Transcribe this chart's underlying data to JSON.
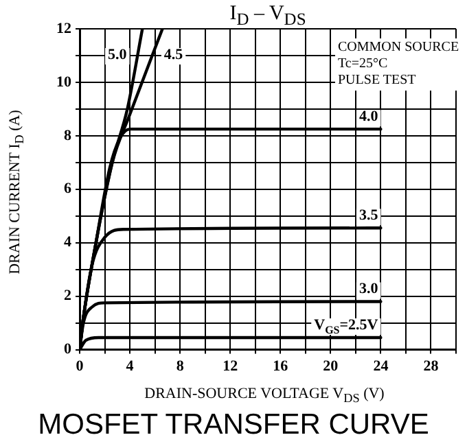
{
  "chart_data": {
    "type": "line",
    "title": "I$_{D}$ – V$_{DS}$",
    "xlabel": "DRAIN-SOURCE VOLTAGE  V$_{DS}$  (V)",
    "ylabel": "DRAIN CURRENT  I$_{D}$  (A)",
    "annotations": [
      "COMMON SOURCE",
      "Tc=25°C",
      "PULSE TEST",
      "MOSFET TRANSFER CURVE"
    ],
    "xlim": [
      0,
      30
    ],
    "ylim": [
      0,
      12
    ],
    "xticks": [
      0,
      {
        "value": 2,
        "label": null
      },
      4,
      {
        "value": 6,
        "label": null
      },
      8,
      {
        "value": 10,
        "label": null
      },
      12,
      {
        "value": 14,
        "label": null
      },
      16,
      {
        "value": 18,
        "label": null
      },
      20,
      {
        "value": 22,
        "label": null
      },
      24,
      {
        "value": 26,
        "label": null
      },
      28,
      {
        "value": 30,
        "label": null
      }
    ],
    "yticks": [
      0,
      {
        "value": 1,
        "label": null
      },
      2,
      {
        "value": 3,
        "label": null
      },
      4,
      {
        "value": 5,
        "label": null
      },
      6,
      {
        "value": 7,
        "label": null
      },
      8,
      {
        "value": 9,
        "label": null
      },
      10,
      {
        "value": 11,
        "label": null
      },
      12
    ],
    "grid": true,
    "legend": false,
    "series": [
      {
        "name": "5.0",
        "color": "#000000",
        "x": [
          0,
          0.3,
          1.3,
          2.6,
          3.8,
          5.0
        ],
        "values": [
          0,
          1.2,
          4,
          7,
          9,
          12
        ]
      },
      {
        "name": "4.5",
        "color": "#000000",
        "x": [
          0,
          0.3,
          1.3,
          2.6,
          4.0,
          6.6
        ],
        "values": [
          0,
          1.2,
          4,
          7,
          8.8,
          12
        ]
      },
      {
        "name": "4.0",
        "color": "#000000",
        "x": [
          0,
          0.3,
          1.3,
          2.4,
          3.2,
          4,
          24
        ],
        "values": [
          0,
          1.2,
          4,
          6.8,
          7.9,
          8.25,
          8.25
        ]
      },
      {
        "name": "3.5",
        "color": "#000000",
        "x": [
          0,
          0.3,
          1,
          2,
          3.5,
          24
        ],
        "values": [
          0,
          1.2,
          3.2,
          4.2,
          4.5,
          4.55
        ]
      },
      {
        "name": "3.0",
        "color": "#000000",
        "x": [
          0,
          0.3,
          1,
          2,
          24
        ],
        "values": [
          0,
          1.0,
          1.6,
          1.75,
          1.8
        ]
      },
      {
        "name": "V$_{GS}$=2.5V",
        "color": "#000000",
        "x": [
          0,
          0.5,
          1.5,
          24
        ],
        "values": [
          0,
          0.35,
          0.45,
          0.45
        ]
      }
    ]
  }
}
